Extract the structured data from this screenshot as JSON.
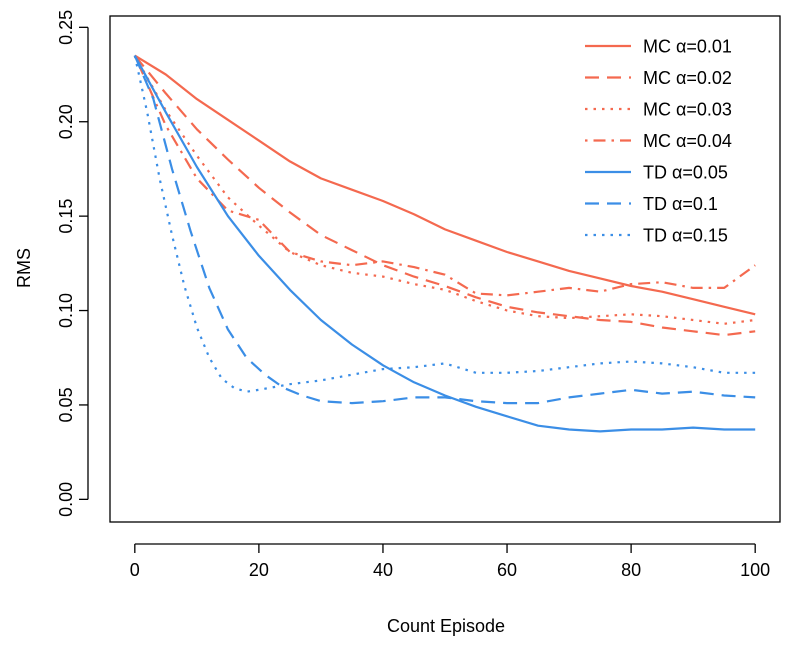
{
  "chart_data": {
    "type": "line",
    "title": "",
    "xlabel": "Count Episode",
    "ylabel": "RMS",
    "xlim": [
      -4,
      104
    ],
    "ylim": [
      -0.012,
      0.256
    ],
    "xticks": [
      0,
      20,
      40,
      60,
      80,
      100
    ],
    "xtick_labels": [
      "0",
      "20",
      "40",
      "60",
      "80",
      "100"
    ],
    "yticks": [
      0.0,
      0.05,
      0.1,
      0.15,
      0.2,
      0.25
    ],
    "ytick_labels": [
      "0.00",
      "0.05",
      "0.10",
      "0.15",
      "0.20",
      "0.25"
    ],
    "grid": false,
    "legend_position": "top-right",
    "series": [
      {
        "name": "MC α=0.01",
        "color": "#f4694f",
        "dash": "solid",
        "x": [
          0,
          5,
          10,
          15,
          20,
          25,
          30,
          35,
          40,
          45,
          50,
          55,
          60,
          65,
          70,
          75,
          80,
          85,
          90,
          95,
          100
        ],
        "y": [
          0.235,
          0.225,
          0.212,
          0.201,
          0.19,
          0.179,
          0.17,
          0.164,
          0.158,
          0.151,
          0.143,
          0.137,
          0.131,
          0.126,
          0.121,
          0.117,
          0.113,
          0.11,
          0.106,
          0.102,
          0.098
        ]
      },
      {
        "name": "MC α=0.02",
        "color": "#f4694f",
        "dash": "dashed",
        "x": [
          0,
          5,
          10,
          15,
          20,
          25,
          30,
          35,
          40,
          45,
          50,
          55,
          60,
          65,
          70,
          75,
          80,
          85,
          90,
          95,
          100
        ],
        "y": [
          0.235,
          0.215,
          0.196,
          0.18,
          0.165,
          0.152,
          0.14,
          0.132,
          0.124,
          0.118,
          0.113,
          0.107,
          0.102,
          0.099,
          0.097,
          0.095,
          0.094,
          0.091,
          0.089,
          0.087,
          0.089
        ]
      },
      {
        "name": "MC α=0.03",
        "color": "#f4694f",
        "dash": "dotted",
        "x": [
          0,
          5,
          10,
          15,
          20,
          25,
          30,
          35,
          40,
          45,
          50,
          55,
          60,
          65,
          70,
          75,
          80,
          85,
          90,
          95,
          100
        ],
        "y": [
          0.235,
          0.206,
          0.182,
          0.16,
          0.145,
          0.131,
          0.124,
          0.12,
          0.118,
          0.114,
          0.111,
          0.105,
          0.1,
          0.097,
          0.096,
          0.097,
          0.098,
          0.097,
          0.095,
          0.093,
          0.095
        ]
      },
      {
        "name": "MC α=0.04",
        "color": "#f4694f",
        "dash": "dotdash",
        "x": [
          0,
          5,
          10,
          15,
          20,
          25,
          30,
          35,
          40,
          45,
          50,
          55,
          60,
          65,
          70,
          75,
          80,
          85,
          90,
          95,
          100
        ],
        "y": [
          0.235,
          0.198,
          0.17,
          0.153,
          0.148,
          0.131,
          0.126,
          0.124,
          0.126,
          0.123,
          0.119,
          0.109,
          0.108,
          0.11,
          0.112,
          0.11,
          0.114,
          0.115,
          0.112,
          0.112,
          0.124
        ]
      },
      {
        "name": "TD α=0.05",
        "color": "#3b8ee6",
        "dash": "solid",
        "x": [
          0,
          5,
          10,
          15,
          20,
          25,
          30,
          35,
          40,
          45,
          50,
          55,
          60,
          65,
          70,
          75,
          80,
          85,
          90,
          95,
          100
        ],
        "y": [
          0.235,
          0.205,
          0.176,
          0.15,
          0.129,
          0.111,
          0.095,
          0.082,
          0.071,
          0.062,
          0.055,
          0.049,
          0.044,
          0.039,
          0.037,
          0.036,
          0.037,
          0.037,
          0.038,
          0.037,
          0.037
        ]
      },
      {
        "name": "TD α=0.1",
        "color": "#3b8ee6",
        "dash": "dashed",
        "x": [
          0,
          3,
          6,
          9,
          12,
          15,
          18,
          21,
          24,
          27,
          30,
          35,
          40,
          45,
          50,
          55,
          60,
          65,
          70,
          75,
          80,
          85,
          90,
          95,
          100
        ],
        "y": [
          0.235,
          0.212,
          0.175,
          0.142,
          0.112,
          0.09,
          0.075,
          0.066,
          0.059,
          0.055,
          0.052,
          0.051,
          0.052,
          0.054,
          0.054,
          0.052,
          0.051,
          0.051,
          0.054,
          0.056,
          0.058,
          0.056,
          0.057,
          0.055,
          0.054
        ]
      },
      {
        "name": "TD α=0.15",
        "color": "#3b8ee6",
        "dash": "dotted",
        "x": [
          0,
          2,
          4,
          6,
          8,
          10,
          12,
          14,
          16,
          18,
          20,
          25,
          30,
          35,
          40,
          45,
          50,
          55,
          60,
          65,
          70,
          75,
          80,
          85,
          90,
          95,
          100
        ],
        "y": [
          0.235,
          0.205,
          0.17,
          0.14,
          0.113,
          0.091,
          0.075,
          0.064,
          0.059,
          0.057,
          0.058,
          0.061,
          0.063,
          0.066,
          0.069,
          0.07,
          0.072,
          0.067,
          0.067,
          0.068,
          0.07,
          0.072,
          0.073,
          0.072,
          0.07,
          0.067,
          0.067
        ]
      }
    ]
  }
}
